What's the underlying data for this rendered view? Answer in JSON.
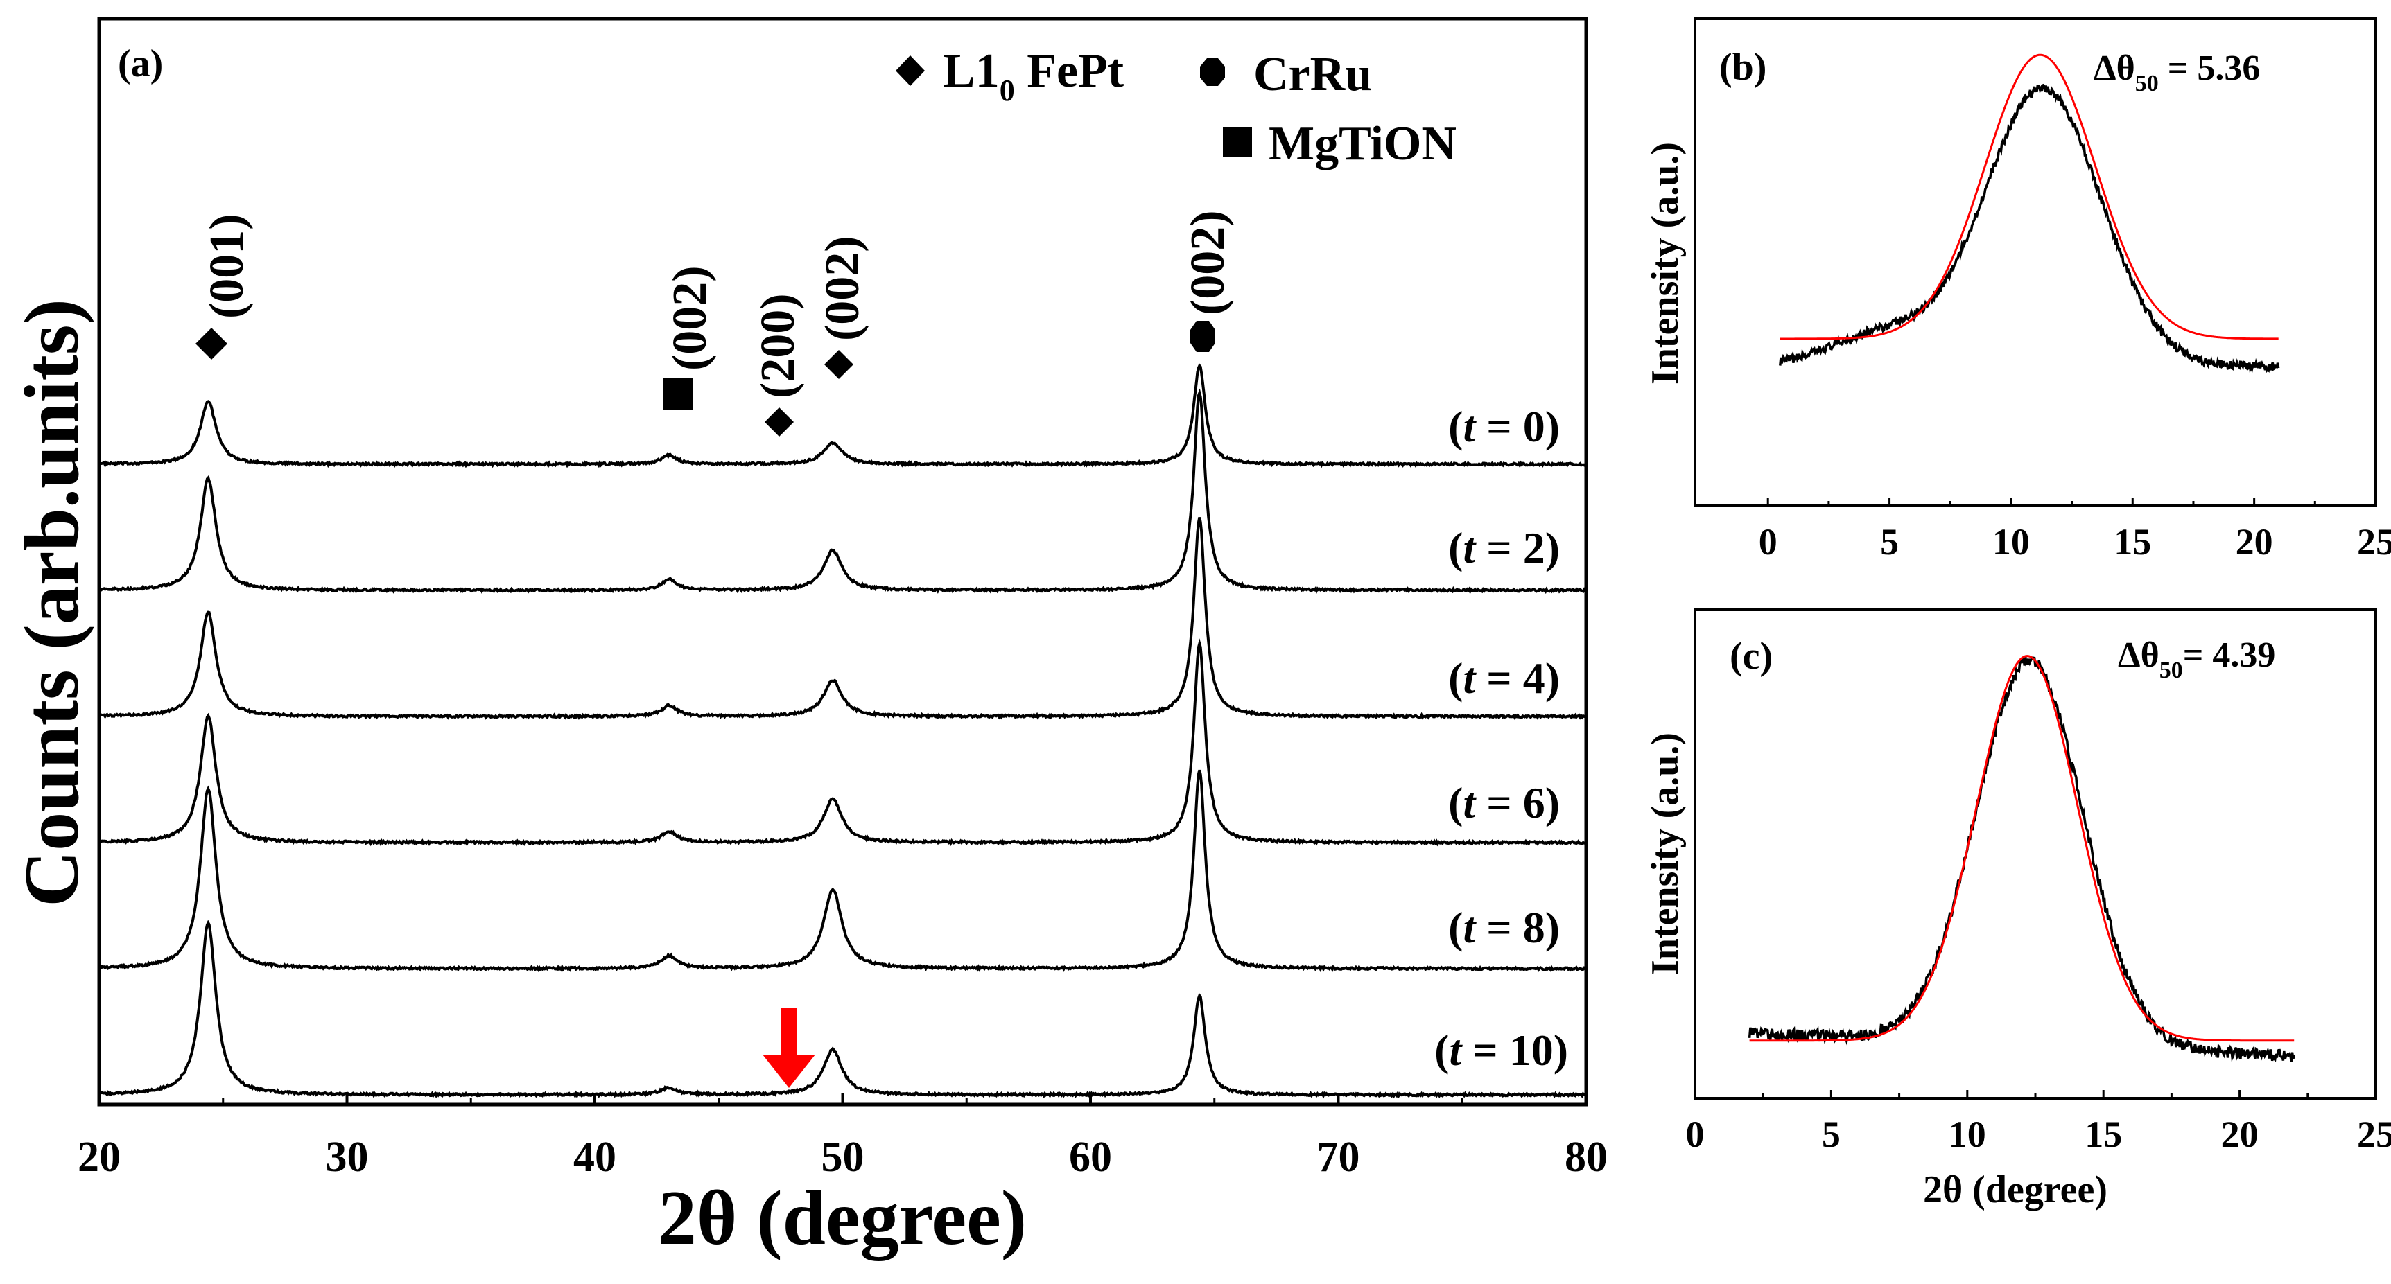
{
  "chart_data": [
    {
      "panel": "(a)",
      "type": "line",
      "title": "",
      "xlabel": "2θ (degree)",
      "ylabel": "Counts (arb.units)",
      "xlim": [
        20,
        80
      ],
      "xticks": [
        20,
        30,
        40,
        50,
        60,
        70,
        80
      ],
      "grid": false,
      "baseline_color": "#000000",
      "legend": [
        {
          "symbol": "diamond",
          "label": "L1",
          "subscript": "0",
          "suffix": " FePt"
        },
        {
          "symbol": "circle",
          "label": "CrRu"
        },
        {
          "symbol": "square",
          "label": "MgTiON"
        }
      ],
      "peaks": [
        {
          "label": "(001)",
          "phase": "L1₀ FePt",
          "x": 24.4
        },
        {
          "label": "(002)",
          "phase": "MgTiON",
          "x": 43.0
        },
        {
          "label": "(200)",
          "phase": "L1₀ FePt",
          "x": 47.4
        },
        {
          "label": "(002)",
          "phase": "L1₀ FePt",
          "x": 49.6
        },
        {
          "label": "(002)",
          "phase": "CrRu",
          "x": 64.4
        }
      ],
      "series": [
        {
          "name": "(t = 0)",
          "label_prefix": "(",
          "label_var": "t",
          "label_rest": " = 0)",
          "offset": 5.0,
          "peaks": [
            {
              "x": 24.4,
              "h": 0.35
            },
            {
              "x": 43.0,
              "h": 0.05
            },
            {
              "x": 49.6,
              "h": 0.12
            },
            {
              "x": 64.4,
              "h": 0.55
            }
          ]
        },
        {
          "name": "(t = 2)",
          "label_prefix": "(",
          "label_var": "t",
          "label_rest": " = 2)",
          "offset": 4.0,
          "peaks": [
            {
              "x": 24.4,
              "h": 0.62
            },
            {
              "x": 43.0,
              "h": 0.06
            },
            {
              "x": 49.6,
              "h": 0.22
            },
            {
              "x": 64.4,
              "h": 1.1
            }
          ]
        },
        {
          "name": "(t = 4)",
          "label_prefix": "(",
          "label_var": "t",
          "label_rest": " = 4)",
          "offset": 3.0,
          "peaks": [
            {
              "x": 24.4,
              "h": 0.58
            },
            {
              "x": 43.0,
              "h": 0.06
            },
            {
              "x": 49.6,
              "h": 0.2
            },
            {
              "x": 64.4,
              "h": 1.1
            }
          ]
        },
        {
          "name": "(t = 6)",
          "label_prefix": "(",
          "label_var": "t",
          "label_rest": " = 6)",
          "offset": 2.0,
          "peaks": [
            {
              "x": 24.4,
              "h": 0.7
            },
            {
              "x": 43.0,
              "h": 0.06
            },
            {
              "x": 49.6,
              "h": 0.24
            },
            {
              "x": 64.4,
              "h": 1.1
            }
          ]
        },
        {
          "name": "(t = 8)",
          "label_prefix": "(",
          "label_var": "t",
          "label_rest": " = 8)",
          "offset": 1.0,
          "peaks": [
            {
              "x": 24.4,
              "h": 1.0
            },
            {
              "x": 43.0,
              "h": 0.07
            },
            {
              "x": 49.6,
              "h": 0.44
            },
            {
              "x": 64.4,
              "h": 1.1
            }
          ]
        },
        {
          "name": "(t = 10)",
          "label_prefix": "(",
          "label_var": "t",
          "label_rest": " = 10)",
          "offset": 0.0,
          "peaks": [
            {
              "x": 24.4,
              "h": 0.95
            },
            {
              "x": 43.0,
              "h": 0.04
            },
            {
              "x": 49.6,
              "h": 0.25
            },
            {
              "x": 64.4,
              "h": 0.55
            }
          ]
        }
      ],
      "annotation_arrow": {
        "x": 47.6,
        "color": "#ff0000",
        "series": "(t = 10)"
      }
    },
    {
      "panel": "(b)",
      "type": "line",
      "xlabel": "",
      "ylabel": "Intensity (a.u.)",
      "xlim": [
        -3,
        25
      ],
      "xticks": [
        0,
        5,
        10,
        15,
        20,
        25
      ],
      "ylim": [
        -0.6,
        1.15
      ],
      "annotation_text": "Δθ",
      "annotation_sub": "50",
      "annotation_value": " = 5.36",
      "series": [
        {
          "name": "measured",
          "color": "#000000",
          "x_range": [
            0.5,
            21
          ],
          "center": 11.3,
          "fwhm": 5.36,
          "amplitude": 1.0,
          "base_start": -0.1,
          "base_end": -0.1,
          "shoulder": {
            "x": 4.8,
            "h": 0.12,
            "sigma": 2.2
          }
        },
        {
          "name": "fit",
          "color": "#ff0000",
          "x_range": [
            0.5,
            21
          ],
          "center": 11.2,
          "fwhm": 5.36,
          "amplitude": 1.02,
          "base": 0.0
        }
      ]
    },
    {
      "panel": "(c)",
      "type": "line",
      "xlabel": "2θ (degree)",
      "ylabel": "Intensity (a.u.)",
      "xlim": [
        0,
        25
      ],
      "xticks": [
        0,
        5,
        10,
        15,
        20,
        25
      ],
      "ylim": [
        -0.15,
        1.12
      ],
      "annotation_text": "Δθ",
      "annotation_sub": "50",
      "annotation_value": "= 4.39",
      "series": [
        {
          "name": "measured",
          "color": "#000000",
          "x_range": [
            2,
            22
          ],
          "center": 12.3,
          "fwhm": 4.39,
          "amplitude": 1.0,
          "base_start": 0.02,
          "base_end": -0.04
        },
        {
          "name": "fit",
          "color": "#ff0000",
          "x_range": [
            2,
            22
          ],
          "center": 12.2,
          "fwhm": 4.39,
          "amplitude": 1.0,
          "base": 0.0
        }
      ]
    }
  ]
}
